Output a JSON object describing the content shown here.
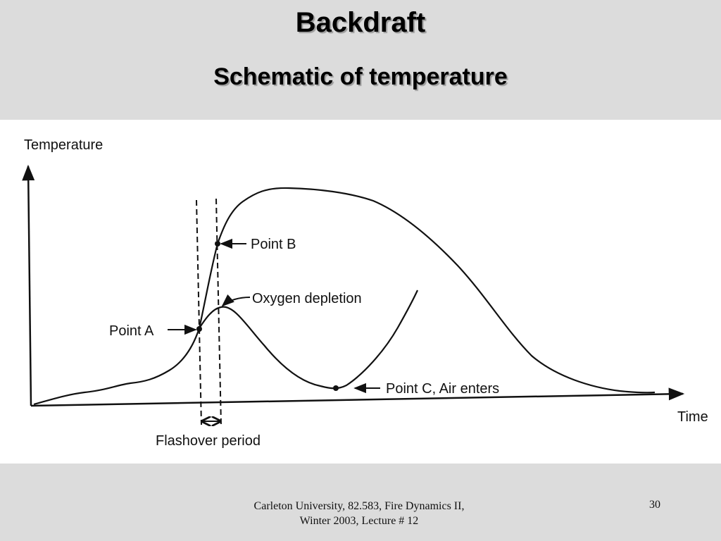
{
  "slide": {
    "title": "Backdraft",
    "subtitle": "Schematic of temperature",
    "footer": "Carleton University, 82.583, Fire Dynamics II, Winter 2003, Lecture # 12",
    "page_number": "30"
  },
  "figure": {
    "y_axis_label": "Temperature",
    "x_axis_label": "Time",
    "annotations": {
      "point_a": "Point A",
      "point_b": "Point B",
      "oxygen_depletion": "Oxygen depletion",
      "point_c": "Point C, Air enters",
      "flashover_period": "Flashover period"
    }
  }
}
